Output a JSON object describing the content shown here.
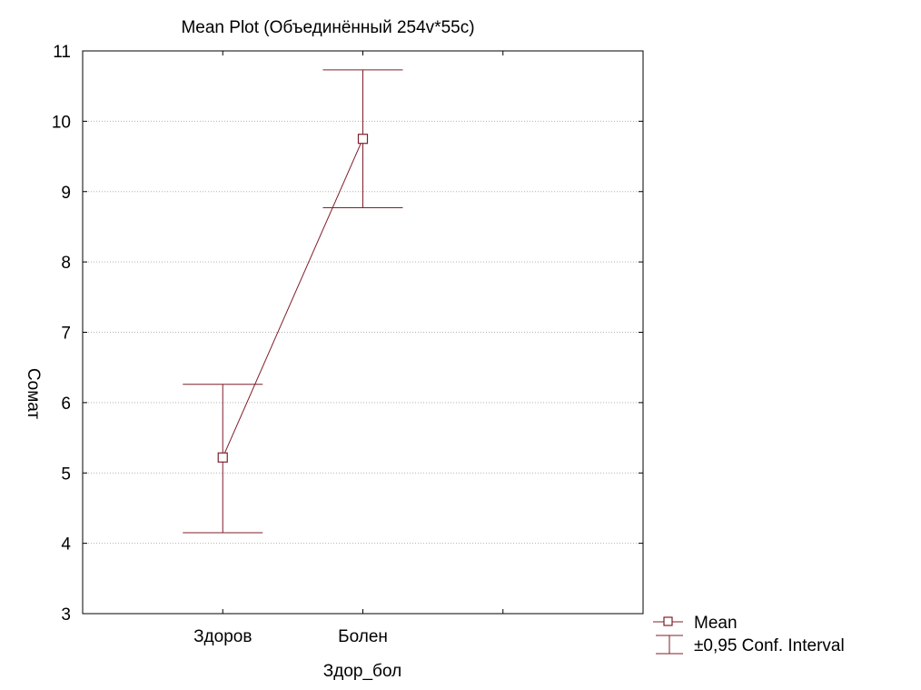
{
  "chart_data": {
    "type": "line",
    "title": "Mean Plot (Объединённый 254v*55c)",
    "xlabel": "Здор_бол",
    "ylabel": "Сомат",
    "categories": [
      "Здоров",
      "Болен"
    ],
    "ylim": [
      3,
      11
    ],
    "yticks": [
      3,
      4,
      5,
      6,
      7,
      8,
      9,
      10,
      11
    ],
    "grid": true,
    "legend_position": "bottom-right",
    "series": [
      {
        "name": "Mean",
        "values": [
          5.22,
          9.75
        ],
        "ci_lower": [
          4.15,
          8.77
        ],
        "ci_upper": [
          6.26,
          10.73
        ]
      }
    ],
    "legend": {
      "mean_label": "Mean",
      "ci_label": "±0,95 Conf. Interval"
    },
    "colors": {
      "series": "#7F1F2A",
      "frame": "#000000",
      "grid": "#B3B3B3"
    }
  }
}
